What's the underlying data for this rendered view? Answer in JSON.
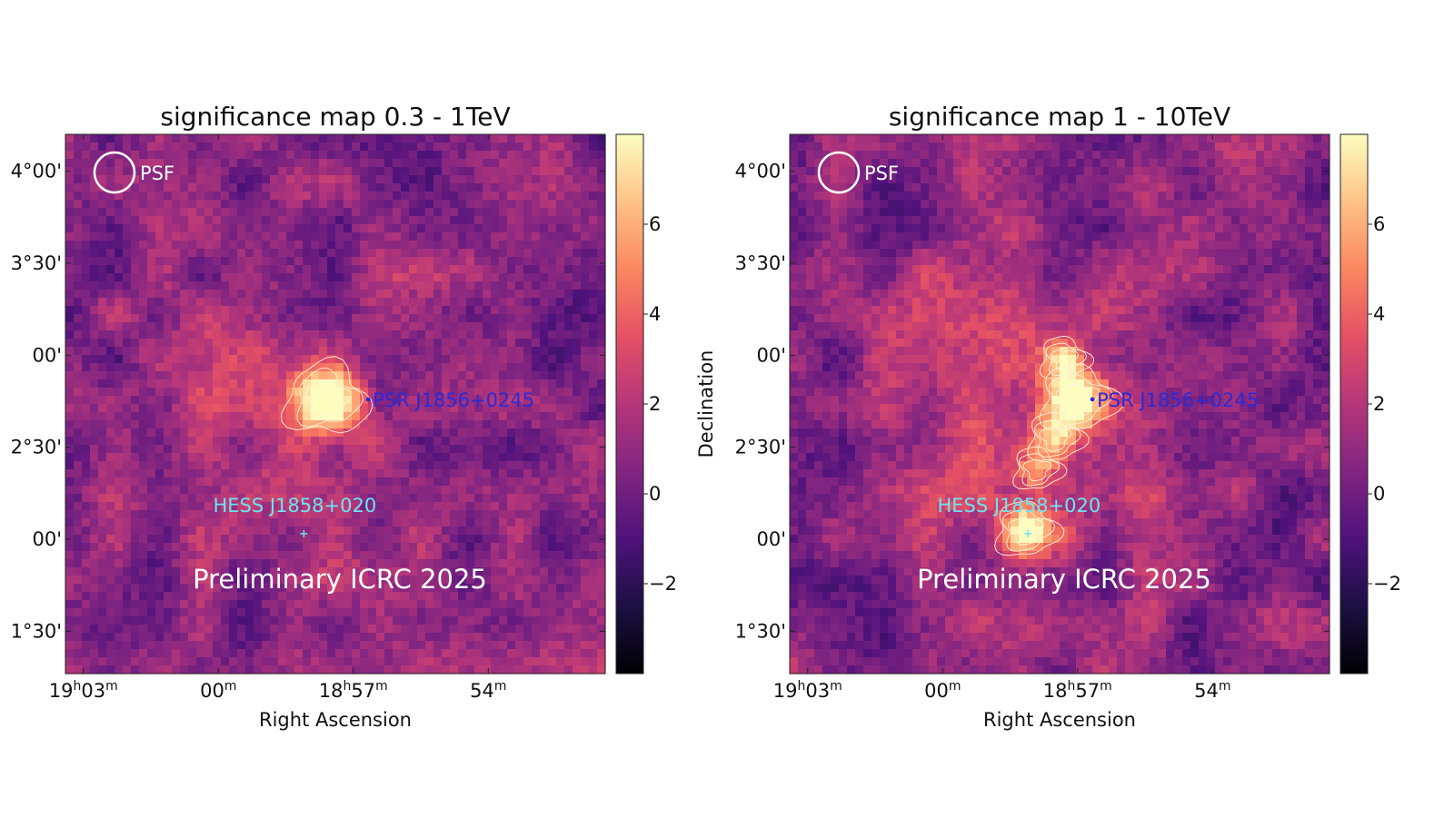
{
  "figure": {
    "background": "#ffffff"
  },
  "colormap": {
    "name": "magma",
    "stops": [
      "#000004",
      "#1c1044",
      "#4f127b",
      "#812581",
      "#b5367a",
      "#e55064",
      "#fb8761",
      "#fec287",
      "#fcfdbf"
    ]
  },
  "chart_data": [
    {
      "type": "heatmap",
      "title": "significance map 0.3 - 1TeV",
      "xlabel": "Right Ascension",
      "ylabel": "",
      "x_ticks": [
        {
          "h": "19",
          "m": "03",
          "pre": "",
          "ra_min": 1143
        },
        {
          "h": "",
          "m": "00",
          "pre": "",
          "ra_min": 1140
        },
        {
          "h": "18",
          "m": "57",
          "pre": "",
          "ra_min": 1137
        },
        {
          "h": "",
          "m": "54",
          "pre": "",
          "ra_min": 1134
        }
      ],
      "xlim_ra_min": [
        1143.4,
        1131.4
      ],
      "y_ticks": [
        {
          "label": "4°00'",
          "dec": 4.0
        },
        {
          "label": "3°30'",
          "dec": 3.5
        },
        {
          "label": "00'",
          "dec": 3.0
        },
        {
          "label": "2°30'",
          "dec": 2.5
        },
        {
          "label": "00'",
          "dec": 2.0
        },
        {
          "label": "1°30'",
          "dec": 1.5
        }
      ],
      "ylim_dec": [
        1.27,
        4.2
      ],
      "colorbar": {
        "ticks": [
          6,
          4,
          2,
          0,
          -2
        ],
        "tick_labels": [
          "6",
          "4",
          "2",
          "0",
          "−2"
        ],
        "vmin": -4,
        "vmax": 8
      },
      "psf_label": "PSF",
      "watermark": "Preliminary ICRC 2025",
      "sources": [
        {
          "name": "PSR J1856+0245",
          "ra_min": 1136.67,
          "dec": 2.76,
          "color": "#2b2bd6",
          "marker": "dot"
        },
        {
          "name": "HESS J1858+020",
          "ra_min": 1138.1,
          "dec": 2.03,
          "color": "#6ee4ee",
          "marker": "plus"
        }
      ],
      "hotspots": [
        {
          "ra_min": 1137.6,
          "dec": 2.76,
          "amp": 7.5,
          "sigma_deg": 0.12,
          "contour": true
        },
        {
          "ra_min": 1138.3,
          "dec": 2.68,
          "amp": 2.0,
          "sigma_deg": 0.45,
          "contour": false
        }
      ]
    },
    {
      "type": "heatmap",
      "title": "significance map 1 - 10TeV",
      "xlabel": "Right Ascension",
      "ylabel": "Declination",
      "x_ticks": [
        {
          "h": "19",
          "m": "03",
          "pre": "",
          "ra_min": 1143
        },
        {
          "h": "",
          "m": "00",
          "pre": "",
          "ra_min": 1140
        },
        {
          "h": "18",
          "m": "57",
          "pre": "",
          "ra_min": 1137
        },
        {
          "h": "",
          "m": "54",
          "pre": "",
          "ra_min": 1134
        }
      ],
      "xlim_ra_min": [
        1143.4,
        1131.4
      ],
      "y_ticks": [
        {
          "label": "4°00'",
          "dec": 4.0
        },
        {
          "label": "3°30'",
          "dec": 3.5
        },
        {
          "label": "00'",
          "dec": 3.0
        },
        {
          "label": "2°30'",
          "dec": 2.5
        },
        {
          "label": "00'",
          "dec": 2.0
        },
        {
          "label": "1°30'",
          "dec": 1.5
        }
      ],
      "ylim_dec": [
        1.27,
        4.2
      ],
      "colorbar": {
        "ticks": [
          6,
          4,
          2,
          0,
          -2
        ],
        "tick_labels": [
          "6",
          "4",
          "2",
          "0",
          "−2"
        ],
        "vmin": -4,
        "vmax": 8
      },
      "psf_label": "PSF",
      "watermark": "Preliminary ICRC 2025",
      "sources": [
        {
          "name": "PSR J1856+0245",
          "ra_min": 1136.67,
          "dec": 2.76,
          "color": "#2b2bd6",
          "marker": "dot"
        },
        {
          "name": "HESS J1858+020",
          "ra_min": 1138.1,
          "dec": 2.03,
          "color": "#6ee4ee",
          "marker": "plus"
        }
      ],
      "hotspots": [
        {
          "ra_min": 1137.0,
          "dec": 2.76,
          "amp": 7.0,
          "sigma_deg": 0.11,
          "contour": true
        },
        {
          "ra_min": 1137.3,
          "dec": 2.98,
          "amp": 5.0,
          "sigma_deg": 0.07,
          "contour": true
        },
        {
          "ra_min": 1138.15,
          "dec": 2.05,
          "amp": 7.0,
          "sigma_deg": 0.09,
          "contour": true
        },
        {
          "ra_min": 1137.9,
          "dec": 2.38,
          "amp": 4.0,
          "sigma_deg": 0.07,
          "contour": true
        },
        {
          "ra_min": 1137.5,
          "dec": 2.55,
          "amp": 4.5,
          "sigma_deg": 0.08,
          "contour": true
        },
        {
          "ra_min": 1138.1,
          "dec": 2.5,
          "amp": 2.5,
          "sigma_deg": 0.45,
          "contour": false
        },
        {
          "ra_min": 1139.5,
          "dec": 3.2,
          "amp": 1.8,
          "sigma_deg": 0.3,
          "contour": false
        }
      ]
    }
  ]
}
